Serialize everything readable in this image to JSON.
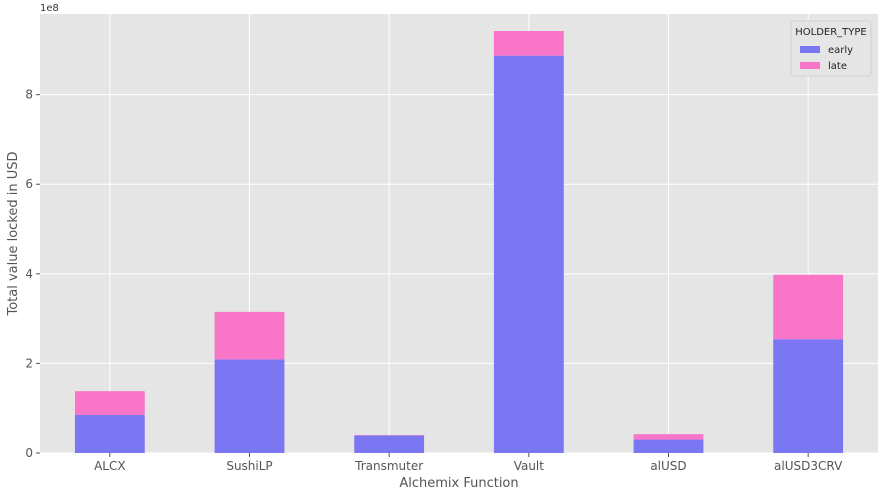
{
  "chart_data": {
    "type": "bar",
    "stacked": true,
    "categories": [
      "ALCX",
      "SushiLP",
      "Transmuter",
      "Vault",
      "alUSD",
      "alUSD3CRV"
    ],
    "series": [
      {
        "name": "early",
        "values": [
          85000000,
          209000000,
          39000000,
          887000000,
          30000000,
          254000000
        ]
      },
      {
        "name": "late",
        "values": [
          53000000,
          106000000,
          1000000,
          55000000,
          12000000,
          144000000
        ]
      }
    ],
    "xlabel": "Alchemix Function",
    "ylabel": "Total value locked in USD",
    "ylim": [
      0,
      980000000
    ],
    "y_ticks": [
      0,
      200000000,
      400000000,
      600000000,
      800000000
    ],
    "y_tick_labels": [
      "0",
      "2",
      "4",
      "6",
      "8"
    ],
    "y_offset_label": "1e8",
    "legend_title": "HOLDER_TYPE",
    "legend_position": "top-right",
    "grid": true,
    "colors": {
      "early": "#7b77f2",
      "late": "#f875c8",
      "plot_background": "#e5e5e5",
      "grid": "#ffffff"
    }
  }
}
